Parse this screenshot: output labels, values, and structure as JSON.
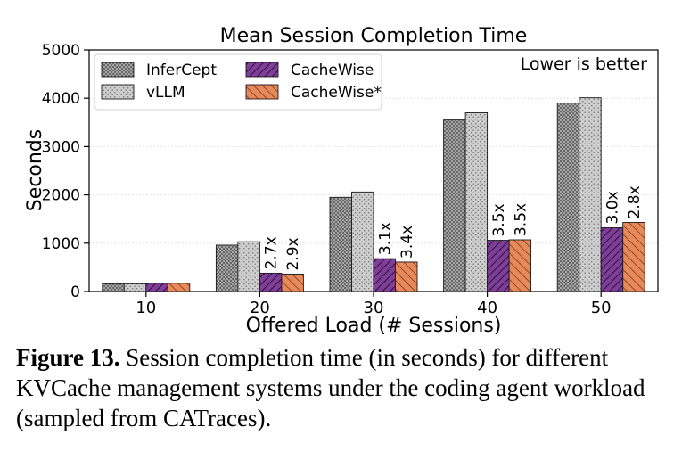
{
  "chart_data": {
    "type": "bar",
    "title": "Mean Session Completion Time",
    "xlabel": "Offered Load (# Sessions)",
    "ylabel": "Seconds",
    "categories": [
      "10",
      "20",
      "30",
      "40",
      "50"
    ],
    "ylim": [
      0,
      5000
    ],
    "yticks": [
      0,
      1000,
      2000,
      3000,
      4000,
      5000
    ],
    "grid": "horizontal",
    "legend_placement": "top-left",
    "annotation": "Lower is better",
    "series": [
      {
        "name": "InferCept",
        "values": [
          160,
          960,
          1950,
          3550,
          3900
        ],
        "color": "#a6a6a6",
        "pattern": "dots-dense"
      },
      {
        "name": "vLLM",
        "values": [
          160,
          1030,
          2060,
          3700,
          4010
        ],
        "color": "#c8c8c8",
        "pattern": "dots"
      },
      {
        "name": "CacheWise",
        "values": [
          170,
          380,
          680,
          1060,
          1320
        ],
        "color": "#7f3f98",
        "pattern": "hatch-dense"
      },
      {
        "name": "CacheWise*",
        "values": [
          170,
          360,
          610,
          1070,
          1430
        ],
        "color": "#e8895a",
        "pattern": "hatch"
      }
    ],
    "bar_labels": {
      "CacheWise": [
        "",
        "2.7x",
        "3.1x",
        "3.5x",
        "3.0x"
      ],
      "CacheWise*": [
        "",
        "2.9x",
        "3.4x",
        "3.5x",
        "2.8x"
      ]
    }
  },
  "caption": {
    "label": "Figure 13.",
    "text": " Session completion time (in seconds) for different KVCache management systems under the coding agent workload (sampled from CATraces)."
  }
}
